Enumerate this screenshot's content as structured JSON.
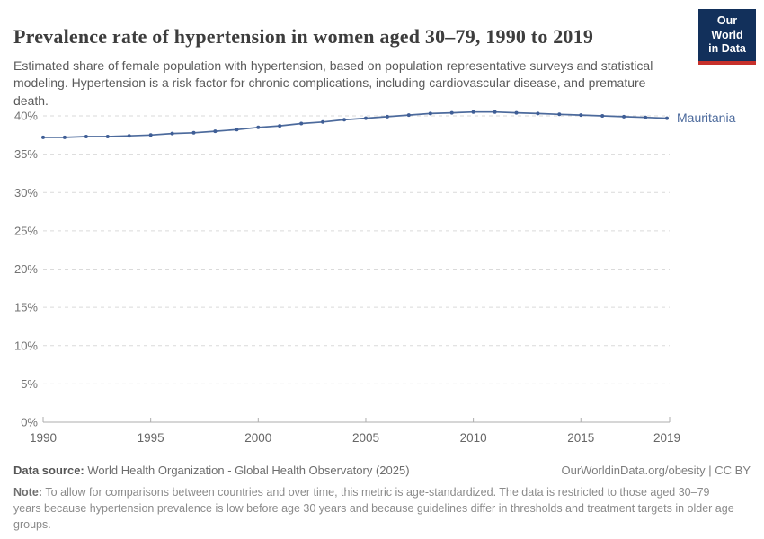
{
  "header": {
    "title": "Prevalence rate of hypertension in women aged 30–79, 1990 to 2019",
    "subtitle": "Estimated share of female population with hypertension, based on population representative surveys and statistical modeling. Hypertension is a risk factor for chronic complications, including cardiovascular disease, and premature death.",
    "logo": {
      "line1": "Our World",
      "line2": "in Data"
    }
  },
  "chart_data": {
    "type": "line",
    "title": "Prevalence rate of hypertension in women aged 30–79, 1990 to 2019",
    "x": [
      1990,
      1991,
      1992,
      1993,
      1994,
      1995,
      1996,
      1997,
      1998,
      1999,
      2000,
      2001,
      2002,
      2003,
      2004,
      2005,
      2006,
      2007,
      2008,
      2009,
      2010,
      2011,
      2012,
      2013,
      2014,
      2015,
      2016,
      2017,
      2018,
      2019
    ],
    "series": [
      {
        "name": "Mauritania",
        "values": [
          37.2,
          37.2,
          37.3,
          37.3,
          37.4,
          37.5,
          37.7,
          37.8,
          38.0,
          38.2,
          38.5,
          38.7,
          39.0,
          39.2,
          39.5,
          39.7,
          39.9,
          40.1,
          40.3,
          40.4,
          40.5,
          40.5,
          40.4,
          40.3,
          40.2,
          40.1,
          40.0,
          39.9,
          39.8,
          39.7
        ]
      }
    ],
    "xlabel": "",
    "ylabel": "",
    "ylim": [
      0,
      40
    ],
    "y_ticks": [
      0,
      5,
      10,
      15,
      20,
      25,
      30,
      35,
      40
    ],
    "y_tick_suffix": "%",
    "x_ticks": [
      1990,
      1995,
      2000,
      2005,
      2010,
      2015,
      2019
    ],
    "grid": "horizontal-dashed",
    "legend": "line-end-label"
  },
  "footer": {
    "datasource_label": "Data source:",
    "datasource_text": "World Health Organization - Global Health Observatory (2025)",
    "attribution": "OurWorldinData.org/obesity | CC BY",
    "note_label": "Note:",
    "note_text": "To allow for comparisons between countries and over time, this metric is age-standardized. The data is restricted to those aged 30–79 years because hypertension prevalence is low before age 30 years and because guidelines differ in thresholds and treatment targets in older age groups."
  },
  "colors": {
    "line": "#4c6a9c",
    "line_dot": "#3f5e96",
    "entity_label": "#4c6a9c",
    "gridline": "#dadada",
    "axis": "#adadad",
    "y_tick_label": "#737373",
    "x_tick_label": "#666666",
    "logo_bg": "#12305b",
    "logo_bar": "#c7302b"
  }
}
